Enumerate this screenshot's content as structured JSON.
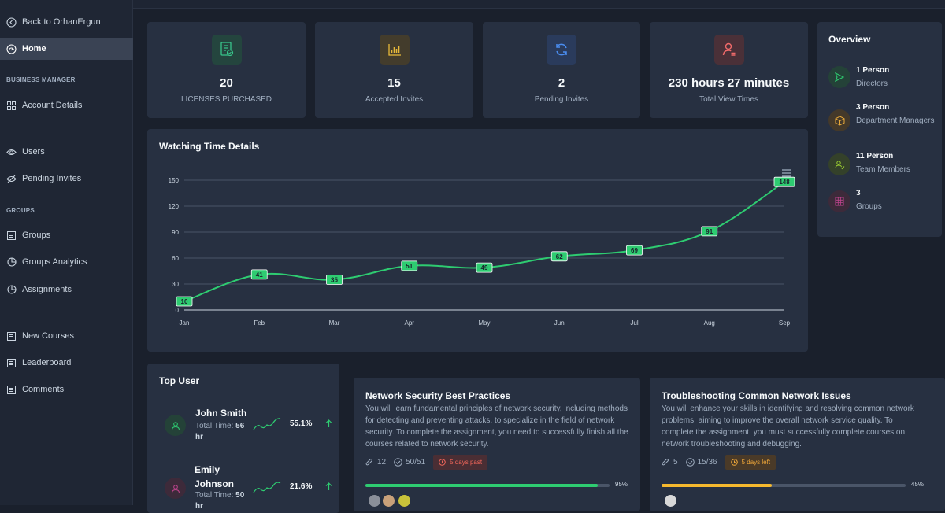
{
  "sidebar": {
    "back_label": "Back to OrhanErgun",
    "home_label": "Home",
    "section_business": "BUSINESS MANAGER",
    "account_details": "Account Details",
    "users": "Users",
    "pending_invites": "Pending Invites",
    "section_groups": "GROUPS",
    "groups": "Groups",
    "groups_analytics": "Groups Analytics",
    "assignments": "Assignments",
    "new_courses": "New Courses",
    "leaderboard": "Leaderboard",
    "comments": "Comments"
  },
  "stats": [
    {
      "value": "20",
      "label": "LICENSES PURCHASED",
      "icon": "license-icon",
      "color": "#38c48a"
    },
    {
      "value": "15",
      "label": "Accepted Invites",
      "icon": "bar-chart-icon",
      "color": "#e8b93a"
    },
    {
      "value": "2",
      "label": "Pending Invites",
      "icon": "refresh-icon",
      "color": "#4a8df0"
    },
    {
      "value": "230 hours 27 minutes",
      "label": "Total View Times",
      "icon": "user-clock-icon",
      "color": "#f06a6a"
    }
  ],
  "overview": {
    "title": "Overview",
    "items": [
      {
        "count": "1 Person",
        "label": "Directors",
        "color": "#2ecc71"
      },
      {
        "count": "3 Person",
        "label": "Department Managers",
        "color": "#e8a93a"
      },
      {
        "count": "11 Person",
        "label": "Team Members",
        "color": "#9acd32"
      },
      {
        "count": "3",
        "label": "Groups",
        "color": "#c0448e"
      }
    ]
  },
  "watching": {
    "title": "Watching Time Details"
  },
  "chart_data": {
    "type": "line",
    "title": "Watching Time Details",
    "categories": [
      "Jan",
      "Feb",
      "Mar",
      "Apr",
      "May",
      "Jun",
      "Jul",
      "Aug",
      "Sep"
    ],
    "values": [
      10,
      41,
      35,
      51,
      49,
      62,
      69,
      91,
      148
    ],
    "yticks": [
      0,
      30,
      60,
      90,
      120,
      150
    ],
    "ylim": [
      0,
      150
    ],
    "color": "#2ecc71"
  },
  "top_user": {
    "title": "Top User",
    "total_time_label": "Total Time:",
    "users": [
      {
        "name": "John Smith",
        "time": "56 hr",
        "pct": "55.1%",
        "color": "#2ecc71"
      },
      {
        "name": "Emily Johnson",
        "time": "50 hr",
        "pct": "21.6%",
        "color": "#c0448e"
      }
    ]
  },
  "courses": [
    {
      "title": "Network Security Best Practices",
      "desc": "You will learn fundamental principles of network security, including methods for detecting and preventing attacks, to specialize in the field of network security. To complete the assignment, you need to successfully finish all the courses related to network security.",
      "attachments": "12",
      "completed": "50/51",
      "badge": "5 days past",
      "badge_color": "#f0665a",
      "badge_bg": "#4a2e34",
      "progress": 95,
      "progress_label": "95%",
      "bar_color": "#2ecc71"
    },
    {
      "title": "Troubleshooting Common Network Issues",
      "desc": "You will enhance your skills in identifying and resolving common network problems, aiming to improve the overall network service quality. To complete the assignment, you must successfully complete courses on network troubleshooting and debugging.",
      "attachments": "5",
      "completed": "15/36",
      "badge": "5 days left",
      "badge_color": "#f0a83a",
      "badge_bg": "#4a3a28",
      "progress": 45,
      "progress_label": "45%",
      "bar_color": "#f5b82e"
    }
  ]
}
